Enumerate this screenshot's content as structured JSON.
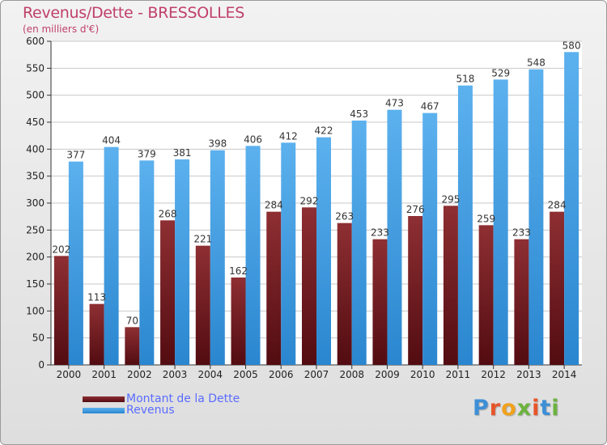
{
  "chart_data": {
    "type": "bar",
    "title": "Revenus/Dette - BRESSOLLES",
    "subtitle": "(en milliers d'€)",
    "xlabel": "",
    "ylabel": "",
    "ylim": [
      0,
      600
    ],
    "y_ticks": [
      0,
      50,
      100,
      150,
      200,
      250,
      300,
      350,
      400,
      450,
      500,
      550,
      600
    ],
    "grid": true,
    "legend_position": "bottom-left",
    "categories": [
      "2000",
      "2001",
      "2002",
      "2003",
      "2004",
      "2005",
      "2006",
      "2007",
      "2008",
      "2009",
      "2010",
      "2011",
      "2012",
      "2013",
      "2014"
    ],
    "series": [
      {
        "name": "Montant de la Dette",
        "color": "#7a1f24",
        "values": [
          202,
          113,
          70,
          268,
          221,
          162,
          284,
          292,
          263,
          233,
          276,
          295,
          259,
          233,
          284
        ]
      },
      {
        "name": "Revenus",
        "color": "#3d9ae0",
        "values": [
          377,
          404,
          379,
          381,
          398,
          406,
          412,
          422,
          453,
          473,
          467,
          518,
          529,
          548,
          580
        ]
      }
    ]
  },
  "logo_text": "Proxiti",
  "colors": {
    "title": "#c0406a",
    "legend_text": "#5a6cff",
    "debt": "#7a1f24",
    "revenue": "#3d9ae0"
  }
}
